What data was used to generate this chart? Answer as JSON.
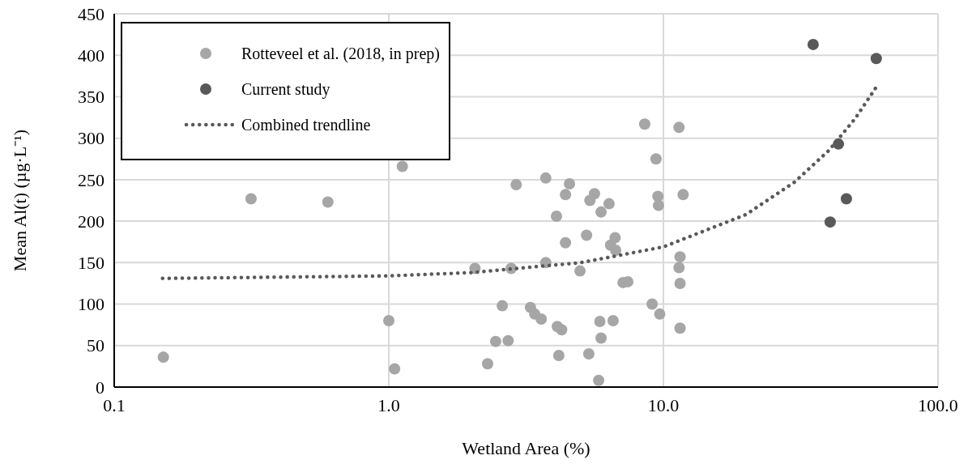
{
  "chart_data": {
    "type": "scatter",
    "xlabel": "Wetland Area (%)",
    "ylabel": "Mean Al(t)  (µg·L⁻¹)",
    "log": "x",
    "xlim": [
      0.1,
      100
    ],
    "xticks": [
      {
        "value": 0.1,
        "label": "0.1"
      },
      {
        "value": 1,
        "label": "1.0"
      },
      {
        "value": 10,
        "label": "10.0"
      },
      {
        "value": 100,
        "label": "100.0"
      }
    ],
    "ylim": [
      0,
      450
    ],
    "yticks": [
      0,
      50,
      100,
      150,
      200,
      250,
      300,
      350,
      400,
      450
    ],
    "grid": true,
    "legend": "top left",
    "marker": "circle",
    "series": [
      {
        "name": "Rotteveel et al. (2018, in prep)",
        "color": "#a6a6a6",
        "x": [
          0.151,
          0.315,
          0.6,
          1.0,
          1.05,
          1.12,
          2.06,
          2.29,
          2.45,
          2.59,
          2.72,
          2.79,
          2.91,
          3.28,
          3.4,
          3.59,
          3.73,
          3.73,
          4.08,
          4.11,
          4.16,
          4.26,
          4.4,
          4.4,
          4.55,
          4.97,
          5.25,
          5.35,
          5.4,
          5.61,
          5.81,
          5.87,
          5.93,
          5.93,
          6.34,
          6.42,
          6.56,
          6.67,
          6.7,
          7.13,
          7.42,
          8.55,
          9.1,
          9.4,
          9.55,
          9.6,
          9.7,
          11.4,
          11.4,
          11.5,
          11.5,
          11.5,
          11.8
        ],
        "values": [
          36,
          227,
          223,
          80,
          22,
          266,
          143,
          28,
          55,
          98,
          56,
          143,
          244,
          96,
          88,
          82,
          252,
          150,
          206,
          73,
          38,
          69,
          232,
          174,
          245,
          140,
          183,
          40,
          225,
          233,
          8,
          79,
          211,
          59,
          221,
          171,
          80,
          180,
          165,
          126,
          127,
          317,
          100,
          275,
          230,
          219,
          88,
          144,
          313,
          157,
          125,
          71,
          232
        ]
      },
      {
        "name": "Current study",
        "color": "#595959",
        "x": [
          35.1,
          40.5,
          43.4,
          46.4,
          59.6
        ],
        "values": [
          413,
          199,
          293,
          227,
          396
        ]
      },
      {
        "name": "Combined trendline",
        "type": "line",
        "marker": "none",
        "line_style": "dotted",
        "color": "#595959",
        "x": [
          0.15,
          1,
          2,
          5,
          10,
          20,
          30,
          40,
          50,
          60
        ],
        "values": [
          131,
          134,
          138,
          150,
          169,
          208,
          247,
          285,
          324,
          363
        ]
      }
    ]
  }
}
